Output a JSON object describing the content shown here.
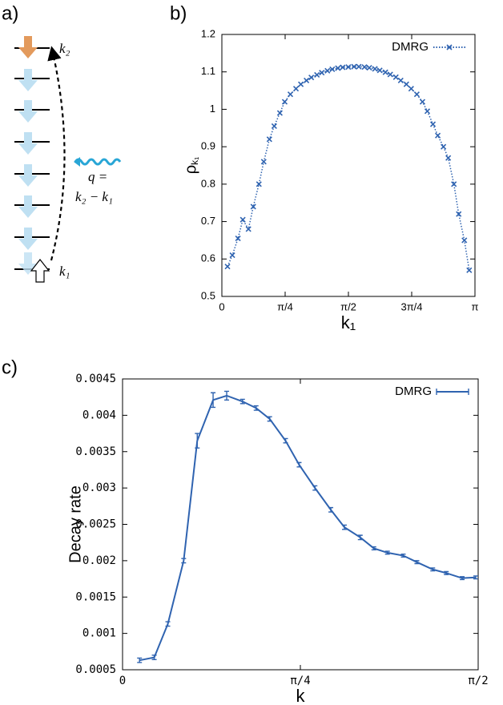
{
  "diagram": {
    "label": "a)",
    "k2": "k₂",
    "q": "q =",
    "q_expr": "k₂ − k₁",
    "k1": "k₁"
  },
  "chart_data": [
    {
      "type": "line",
      "panel_label": "b)",
      "xlabel": "k₁",
      "ylabel": "ρ",
      "ylabel_subscript": "k₁",
      "xlim": [
        0,
        3.1416
      ],
      "ylim": [
        0.5,
        1.2
      ],
      "xticks": [
        0,
        {
          "value": 0.7854,
          "label": "π/4"
        },
        {
          "value": 1.5708,
          "label": "π/2"
        },
        {
          "value": 2.3562,
          "label": "3π/4"
        },
        {
          "value": 3.1416,
          "label": "π"
        }
      ],
      "yticks": [
        0.5,
        0.6,
        0.7,
        0.8,
        0.9,
        1,
        1.1,
        1.2
      ],
      "legend": "top-right",
      "line_style": "dotted",
      "marker": "x",
      "x": [
        0.07,
        0.13,
        0.2,
        0.26,
        0.33,
        0.39,
        0.46,
        0.52,
        0.59,
        0.65,
        0.72,
        0.78,
        0.85,
        0.92,
        0.98,
        1.05,
        1.11,
        1.18,
        1.24,
        1.31,
        1.37,
        1.44,
        1.5,
        1.57,
        1.64,
        1.7,
        1.77,
        1.83,
        1.9,
        1.96,
        2.03,
        2.09,
        2.16,
        2.22,
        2.29,
        2.35,
        2.42,
        2.49,
        2.55,
        2.62,
        2.68,
        2.75,
        2.81,
        2.88,
        2.94,
        3.01,
        3.07
      ],
      "series": [
        {
          "name": "DMRG",
          "color": "#2f63b0",
          "values": [
            0.58,
            0.61,
            0.655,
            0.705,
            0.68,
            0.74,
            0.8,
            0.86,
            0.92,
            0.955,
            0.99,
            1.02,
            1.04,
            1.055,
            1.067,
            1.077,
            1.085,
            1.092,
            1.098,
            1.103,
            1.107,
            1.11,
            1.112,
            1.113,
            1.114,
            1.114,
            1.113,
            1.111,
            1.108,
            1.104,
            1.099,
            1.093,
            1.086,
            1.077,
            1.067,
            1.055,
            1.04,
            1.02,
            0.995,
            0.96,
            0.93,
            0.9,
            0.87,
            0.8,
            0.72,
            0.65,
            0.57
          ]
        }
      ]
    },
    {
      "type": "line",
      "panel_label": "c)",
      "xlabel": "k",
      "ylabel": "Decay rate",
      "xlim": [
        0,
        1.5708
      ],
      "ylim": [
        0.0005,
        0.0045
      ],
      "xticks": [
        0,
        {
          "value": 0.7854,
          "label": "π/4"
        },
        {
          "value": 1.5708,
          "label": "π/2"
        }
      ],
      "yticks": [
        0.0005,
        0.001,
        0.0015,
        0.002,
        0.0025,
        0.003,
        0.0035,
        0.004,
        0.0045
      ],
      "legend": "top-right",
      "line_style": "solid",
      "marker": "errorbar",
      "x": [
        0.075,
        0.14,
        0.2,
        0.27,
        0.33,
        0.4,
        0.46,
        0.53,
        0.59,
        0.65,
        0.72,
        0.78,
        0.85,
        0.92,
        0.98,
        1.05,
        1.11,
        1.17,
        1.24,
        1.3,
        1.37,
        1.43,
        1.5,
        1.56
      ],
      "series": [
        {
          "name": "DMRG",
          "color": "#2f63b0",
          "values": [
            0.00063,
            0.00067,
            0.00113,
            0.002,
            0.00365,
            0.00421,
            0.00427,
            0.00419,
            0.0041,
            0.00395,
            0.00365,
            0.00332,
            0.003,
            0.0027,
            0.00246,
            0.00232,
            0.00217,
            0.00211,
            0.00207,
            0.00198,
            0.00188,
            0.00183,
            0.00176,
            0.00177
          ],
          "errors": [
            3e-05,
            3e-05,
            3e-05,
            3e-05,
            0.0001,
            0.0001,
            6e-05,
            3e-05,
            3e-05,
            3e-05,
            3e-05,
            3e-05,
            3e-05,
            3e-05,
            3e-05,
            3e-05,
            2e-05,
            2e-05,
            2e-05,
            2e-05,
            2e-05,
            2e-05,
            2e-05,
            2e-05
          ]
        }
      ]
    }
  ]
}
